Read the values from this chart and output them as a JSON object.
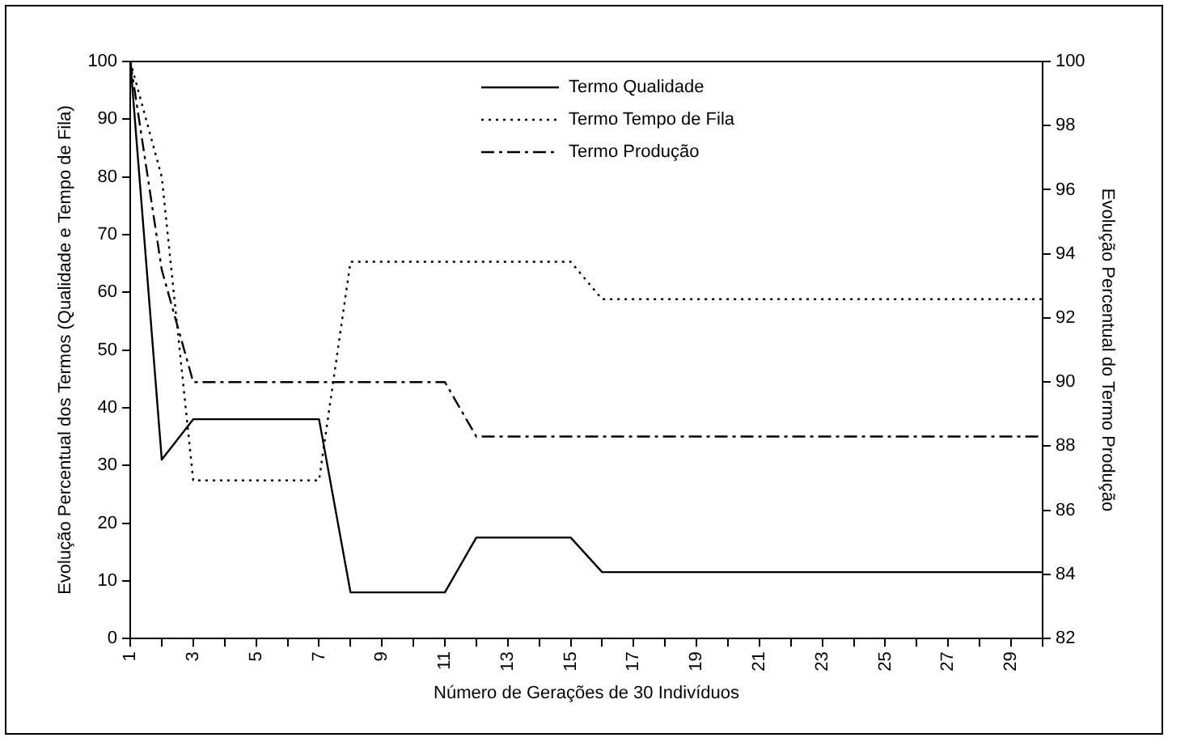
{
  "chart_data": {
    "type": "line",
    "xlabel": "Número de Gerações de 30 Indivíduos",
    "ylabel": "Evolução Percentual dos Termos (Qualidade e Tempo de Fila)",
    "y2label": "Evolução Percentual do Termo Produção",
    "categories": [
      "1",
      null,
      "3",
      null,
      "5",
      null,
      "7",
      null,
      "9",
      null,
      "11",
      null,
      "13",
      null,
      "15",
      null,
      "17",
      null,
      "19",
      null,
      "21",
      null,
      "23",
      null,
      "25",
      null,
      "27",
      null,
      "29",
      null
    ],
    "series": [
      {
        "name": "Termo Qualidade",
        "color": "#000000",
        "line_style": "solid",
        "values": [
          100,
          31,
          38,
          38,
          38,
          38,
          38,
          8,
          8,
          8,
          8,
          17.5,
          17.5,
          17.5,
          17.5,
          11.5,
          11.5,
          11.5,
          11.5,
          11.5,
          11.5,
          11.5,
          11.5,
          11.5,
          11.5,
          11.5,
          11.5,
          11.5,
          11.5,
          11.5
        ]
      },
      {
        "name": "Termo Tempo de Fila",
        "color": "#000000",
        "line_style": "dotted",
        "values": [
          100,
          80,
          27.4,
          27.4,
          27.4,
          27.4,
          27.4,
          65.3,
          65.3,
          65.3,
          65.3,
          65.3,
          65.3,
          65.3,
          65.3,
          58.8,
          58.8,
          58.8,
          58.8,
          58.8,
          58.8,
          58.8,
          58.8,
          58.8,
          58.8,
          58.8,
          58.8,
          58.8,
          58.8,
          58.8
        ]
      },
      {
        "name": "Termo Produção",
        "color": "#000000",
        "line_style": "dashed",
        "axis": "y2",
        "values": [
          100,
          93.5,
          90,
          90,
          90,
          90,
          90,
          90,
          90,
          90,
          90,
          88.3,
          88.3,
          88.3,
          88.3,
          88.3,
          88.3,
          88.3,
          88.3,
          88.3,
          88.3,
          88.3,
          88.3,
          88.3,
          88.3,
          88.3,
          88.3,
          88.3,
          88.3,
          88.3
        ]
      }
    ],
    "ylim": [
      0,
      100
    ],
    "yticks": [
      0,
      10,
      20,
      30,
      40,
      50,
      60,
      70,
      80,
      90,
      100
    ],
    "y2lim": [
      82,
      100
    ],
    "y2ticks": [
      82,
      84,
      86,
      88,
      90,
      92,
      94,
      96,
      98,
      100
    ],
    "grid": false,
    "legend": "top",
    "marker": "none"
  }
}
